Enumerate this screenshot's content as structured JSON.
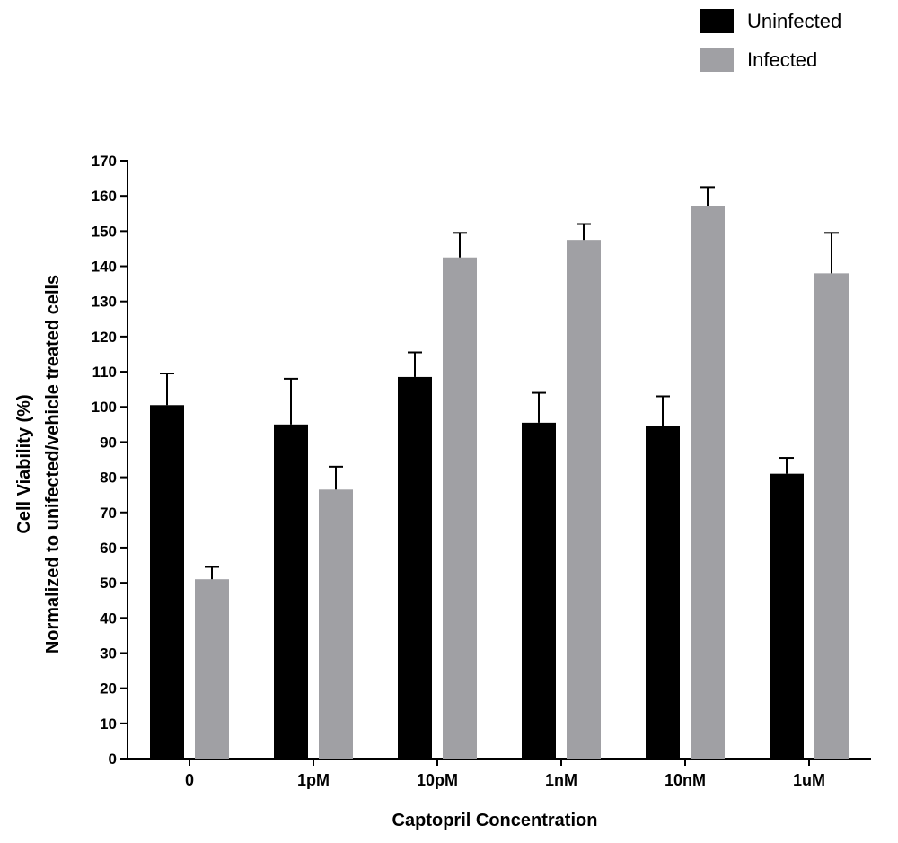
{
  "chart_data": {
    "type": "bar",
    "title": "",
    "xlabel": "Captopril Concentration",
    "ylabel_line1": "Cell Viability (%)",
    "ylabel_line2": "Normalized to unifected/vehicle treated cells",
    "categories": [
      "0",
      "1pM",
      "10pM",
      "1nM",
      "10nM",
      "1uM"
    ],
    "ylim": [
      0,
      170
    ],
    "yticks": [
      0,
      10,
      20,
      30,
      40,
      50,
      60,
      70,
      80,
      90,
      100,
      110,
      120,
      130,
      140,
      150,
      160,
      170
    ],
    "grid": false,
    "legend_position": "top-right",
    "series": [
      {
        "name": "Uninfected",
        "color": "#000000",
        "values": [
          100.5,
          95,
          108.5,
          95.5,
          94.5,
          81
        ],
        "errors": [
          9,
          13,
          7,
          8.5,
          8.5,
          4.5
        ]
      },
      {
        "name": "Infected",
        "color": "#a0a0a4",
        "values": [
          51,
          76.5,
          142.5,
          147.5,
          157,
          138
        ],
        "errors": [
          3.5,
          6.5,
          7,
          4.5,
          5.5,
          11.5
        ]
      }
    ]
  }
}
